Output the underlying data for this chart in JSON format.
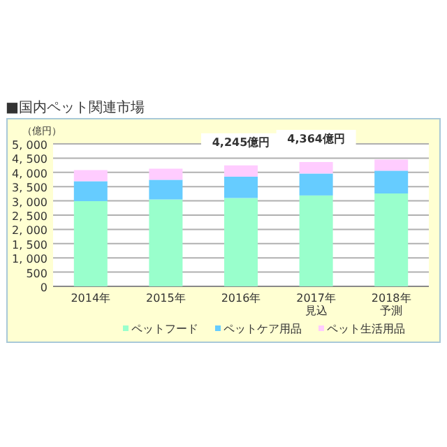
{
  "chart_data": {
    "type": "bar",
    "stacked": true,
    "title": "■国内ペット関連市場",
    "ylabel": "（億円）",
    "categories": [
      "2014年",
      "2015年",
      "2016年",
      "2017年見込",
      "2018年予測"
    ],
    "series": [
      {
        "name": "ペットフード",
        "color": "#99ffcc",
        "values": [
          2990,
          3050,
          3100,
          3190,
          3260
        ]
      },
      {
        "name": "ペットケア用品",
        "color": "#66ccff",
        "values": [
          700,
          690,
          750,
          770,
          800
        ]
      },
      {
        "name": "ペット生活用品",
        "color": "#ffccff",
        "values": [
          390,
          390,
          395,
          404,
          390
        ]
      }
    ],
    "totals": [
      null,
      null,
      "4,245億円",
      "4,364億円",
      null
    ],
    "ylim": [
      0,
      5000
    ],
    "yticks": [
      0,
      500,
      {
        "value": 1000,
        "label": "1, 000"
      },
      {
        "value": 1500,
        "label": "1, 500"
      },
      {
        "value": 2000,
        "label": "2, 000"
      },
      {
        "value": 2500,
        "label": "2, 500"
      },
      {
        "value": 3000,
        "label": "3, 000"
      },
      {
        "value": 3500,
        "label": "3, 500"
      },
      {
        "value": 4000,
        "label": "4, 000"
      },
      {
        "value": 4500,
        "label": "4, 500"
      },
      {
        "value": 5000,
        "label": "5, 000"
      }
    ],
    "grid": "y",
    "legend": "bottom"
  }
}
